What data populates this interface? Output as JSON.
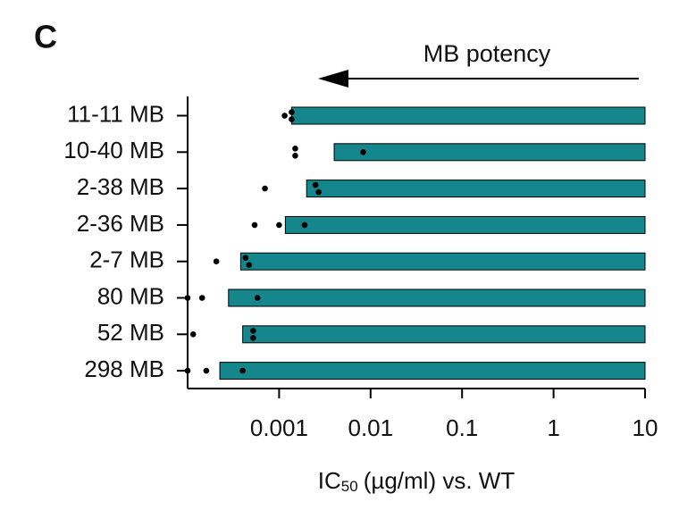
{
  "chart_data": {
    "type": "bar",
    "orientation": "horizontal",
    "panel_label": "C",
    "annotation": "MB potency",
    "xlabel": {
      "main": "IC",
      "sub": "50",
      "rest": "(µg/ml) vs. WT"
    },
    "categories": [
      "11-11 MB",
      "10-40 MB",
      "2-38 MB",
      "2-36 MB",
      "2-7 MB",
      "80 MB",
      "52 MB",
      "298 MB"
    ],
    "values": [
      0.00137,
      0.004,
      0.002,
      0.00117,
      0.00038,
      0.00028,
      0.0004,
      0.000225
    ],
    "points": [
      [
        0.00115,
        0.00137,
        0.00137
      ],
      [
        0.0015,
        0.0015,
        0.0083
      ],
      [
        0.0007,
        0.0025,
        0.0027
      ],
      [
        0.00054,
        0.001,
        0.0019
      ],
      [
        0.000206,
        0.00043,
        0.00047
      ],
      [
        0.0001,
        0.000144,
        0.00058
      ],
      [
        0.000115,
        0.00052,
        0.00052
      ],
      [
        0.0001,
        0.00016,
        0.0004
      ]
    ],
    "color": "#14868c",
    "point_color": "#000000",
    "xscale": "log",
    "xlim": [
      0.0001,
      10
    ],
    "xticks": [
      0.001,
      0.01,
      0.1,
      1,
      10
    ]
  }
}
